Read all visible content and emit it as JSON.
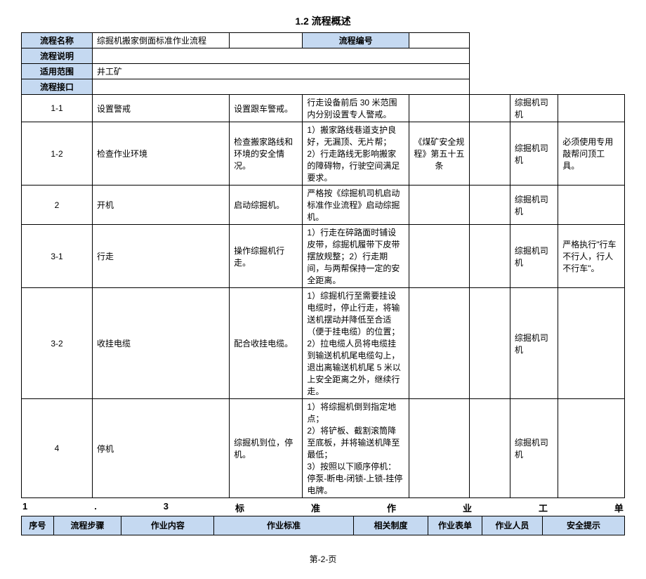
{
  "page_title": "1.2 流程概述",
  "meta": {
    "labels": {
      "process_name": "流程名称",
      "process_desc": "流程说明",
      "scope": "适用范围",
      "interface": "流程接口",
      "process_code": "流程编号"
    },
    "values": {
      "process_name": "综掘机搬家倒面标准作业流程",
      "process_desc": "",
      "scope": "井工矿",
      "interface": "",
      "process_code": ""
    }
  },
  "section_header": {
    "num": "1",
    "dot": ".",
    "three": "3",
    "w1": "标",
    "w2": "准",
    "w3": "作",
    "w4": "业",
    "w5": "工",
    "w6": "单"
  },
  "table": {
    "headers": {
      "seq": "序号",
      "step": "流程步骤",
      "content": "作业内容",
      "standard": "作业标准",
      "system": "相关制度",
      "form": "作业表单",
      "person": "作业人员",
      "safety": "安全提示"
    },
    "rows": [
      {
        "seq": "1-1",
        "step": "设置警戒",
        "content": "设置跟车警戒。",
        "standard": "行走设备前后 30 米范围内分别设置专人警戒。",
        "system": "",
        "form": "",
        "person": "综掘机司机",
        "safety": ""
      },
      {
        "seq": "1-2",
        "step": "检查作业环境",
        "content": "检查搬家路线和环境的安全情况。",
        "standard": "1）搬家路线巷道支护良好，无漏顶、无片帮；\n2）行走路线无影响搬家的障碍物，行驶空间满足要求。",
        "system": "《煤矿安全规程》第五十五条",
        "form": "",
        "person": "综掘机司机",
        "safety": "必须使用专用敲帮问顶工具。"
      },
      {
        "seq": "2",
        "step": "开机",
        "content": "启动综掘机。",
        "standard": "严格按《综掘机司机启动标准作业流程》启动综掘机。",
        "system": "",
        "form": "",
        "person": "综掘机司机",
        "safety": ""
      },
      {
        "seq": "3-1",
        "step": "行走",
        "content": "操作综掘机行走。",
        "standard": "1）行走在碎路面时铺设皮带，综掘机履带下皮带摆放规整；2）行走期间，与两帮保持一定的安全距离。",
        "system": "",
        "form": "",
        "person": "综掘机司机",
        "safety": "严格执行\"行车不行人，行人不行车\"。"
      },
      {
        "seq": "3-2",
        "step": "收挂电缆",
        "content": "配合收挂电缆。",
        "standard": "1）综掘机行至需要挂设电缆时，停止行走，将输送机摆动并降低至合适（便于挂电缆）的位置；\n2）拉电缆人员将电缆挂到输送机机尾电缆勾上，退出离输送机机尾 5 米以上安全距离之外，继续行走。",
        "system": "",
        "form": "",
        "person": "综掘机司机",
        "safety": ""
      },
      {
        "seq": "4",
        "step": "停机",
        "content": "综掘机到位，停机。",
        "standard": "1）将综掘机倒到指定地点；\n2）将铲板、截割滚筒降至底板，并将输送机降至最低；\n3）按照以下顺序停机：停泵-断电-闭锁-上锁-挂停电牌。",
        "system": "",
        "form": "",
        "person": "综掘机司机",
        "safety": ""
      }
    ]
  },
  "footer": "第-2-页",
  "style": {
    "header_bg": "#c5d9f1",
    "border_color": "#000000",
    "font_size_body": 12,
    "font_size_title": 14
  }
}
